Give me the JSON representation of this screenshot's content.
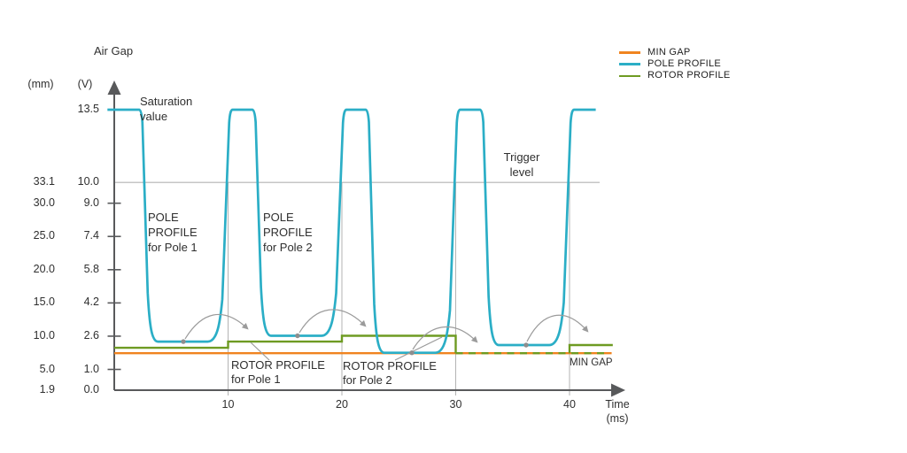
{
  "chart_data": {
    "type": "line",
    "title": "Air Gap",
    "axis_units": [
      "(mm)",
      "(V)"
    ],
    "x_axis_label": [
      "Time",
      "(ms)"
    ],
    "x_ticks": [
      10,
      20,
      30,
      40
    ],
    "x_range_ms": [
      0,
      44
    ],
    "y_ticks": [
      {
        "v": 13.5,
        "v_label": "13.5",
        "mm_label": ""
      },
      {
        "v": 10.0,
        "v_label": "10.0",
        "mm_label": "33.1"
      },
      {
        "v": 9.0,
        "v_label": "9.0",
        "mm_label": "30.0"
      },
      {
        "v": 7.4,
        "v_label": "7.4",
        "mm_label": "25.0"
      },
      {
        "v": 5.8,
        "v_label": "5.8",
        "mm_label": "20.0"
      },
      {
        "v": 4.2,
        "v_label": "4.2",
        "mm_label": "15.0"
      },
      {
        "v": 2.6,
        "v_label": "2.6",
        "mm_label": "10.0"
      },
      {
        "v": 1.0,
        "v_label": "1.0",
        "mm_label": "5.0"
      },
      {
        "v": 0.0,
        "v_label": "0.0",
        "mm_label": "1.9"
      }
    ],
    "saturation_value_v": 13.5,
    "trigger_level_v": 10.0,
    "min_gap": {
      "v": 1.78,
      "from_ms": 0,
      "to_ms": 43.7,
      "color": "#F08420"
    },
    "pole_profile": {
      "color": "#2BAEC6",
      "saturation_v": 13.5,
      "top_intervals_ms": [
        [
          -0.6,
          2.2
        ],
        [
          10.35,
          12.15
        ],
        [
          20.35,
          22.1
        ],
        [
          30.35,
          32.15
        ],
        [
          40.35,
          42.3
        ]
      ],
      "dips_v": [
        2.34,
        2.62,
        1.8,
        2.17
      ],
      "trigger_crossings_ms": [
        10,
        20,
        30,
        40
      ],
      "dip_marker_t_ms": [
        6.07,
        16.1,
        26.15,
        36.19
      ]
    },
    "rotor_profile": {
      "color": "#6E9B22",
      "steps": [
        {
          "from_ms": 0,
          "to_ms": 10,
          "v": 2.04,
          "style": "solid"
        },
        {
          "from_ms": 10,
          "to_ms": 20,
          "v": 2.34,
          "style": "solid"
        },
        {
          "from_ms": 20,
          "to_ms": 30,
          "v": 2.62,
          "style": "solid"
        },
        {
          "from_ms": 30,
          "to_ms": 43.5,
          "v": 1.78,
          "style": "dashed"
        },
        {
          "from_ms": 40,
          "to_ms": 43.8,
          "v": 2.17,
          "style": "solid"
        }
      ]
    }
  },
  "legend": {
    "items": [
      "MIN GAP",
      "POLE PROFILE",
      "ROTOR PROFILE"
    ]
  },
  "annotations": {
    "saturation": {
      "lines": [
        "Saturation",
        "value"
      ]
    },
    "trigger": {
      "lines": [
        "Trigger",
        "level"
      ]
    },
    "pole1": {
      "lines": [
        "POLE",
        "PROFILE",
        "for Pole 1"
      ]
    },
    "pole2": {
      "lines": [
        "POLE",
        "PROFILE",
        "for Pole 2"
      ]
    },
    "rotor1": {
      "lines": [
        "ROTOR PROFILE",
        "for Pole 1"
      ]
    },
    "rotor2": {
      "lines": [
        "ROTOR PROFILE",
        "for Pole 2"
      ]
    },
    "min_gap": {
      "text": "MIN GAP"
    }
  }
}
